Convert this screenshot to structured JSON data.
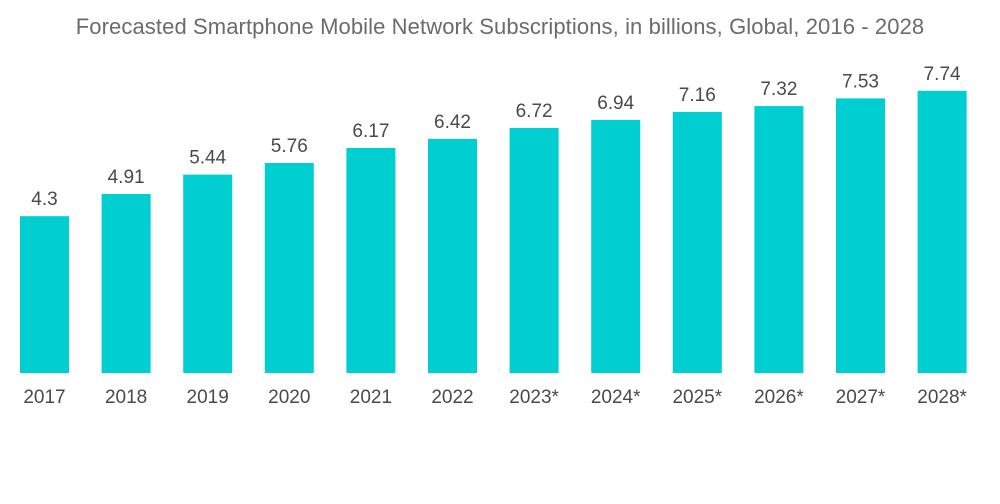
{
  "chart_data": {
    "type": "bar",
    "title": "Forecasted Smartphone Mobile Network Subscriptions, in billions, Global, 2016 - 2028",
    "categories": [
      "2017",
      "2018",
      "2019",
      "2020",
      "2021",
      "2022",
      "2023*",
      "2024*",
      "2025*",
      "2026*",
      "2027*",
      "2028*"
    ],
    "values": [
      4.3,
      4.91,
      5.44,
      5.76,
      6.17,
      6.42,
      6.72,
      6.94,
      7.16,
      7.32,
      7.53,
      7.74
    ],
    "value_labels": [
      "4.3",
      "4.91",
      "5.44",
      "5.76",
      "6.17",
      "6.42",
      "6.72",
      "6.94",
      "7.16",
      "7.32",
      "7.53",
      "7.74"
    ],
    "xlabel": "",
    "ylabel": "",
    "ylim": [
      0,
      8.2
    ],
    "grid": false,
    "legend": "none",
    "bar_color": "#00CED1"
  }
}
